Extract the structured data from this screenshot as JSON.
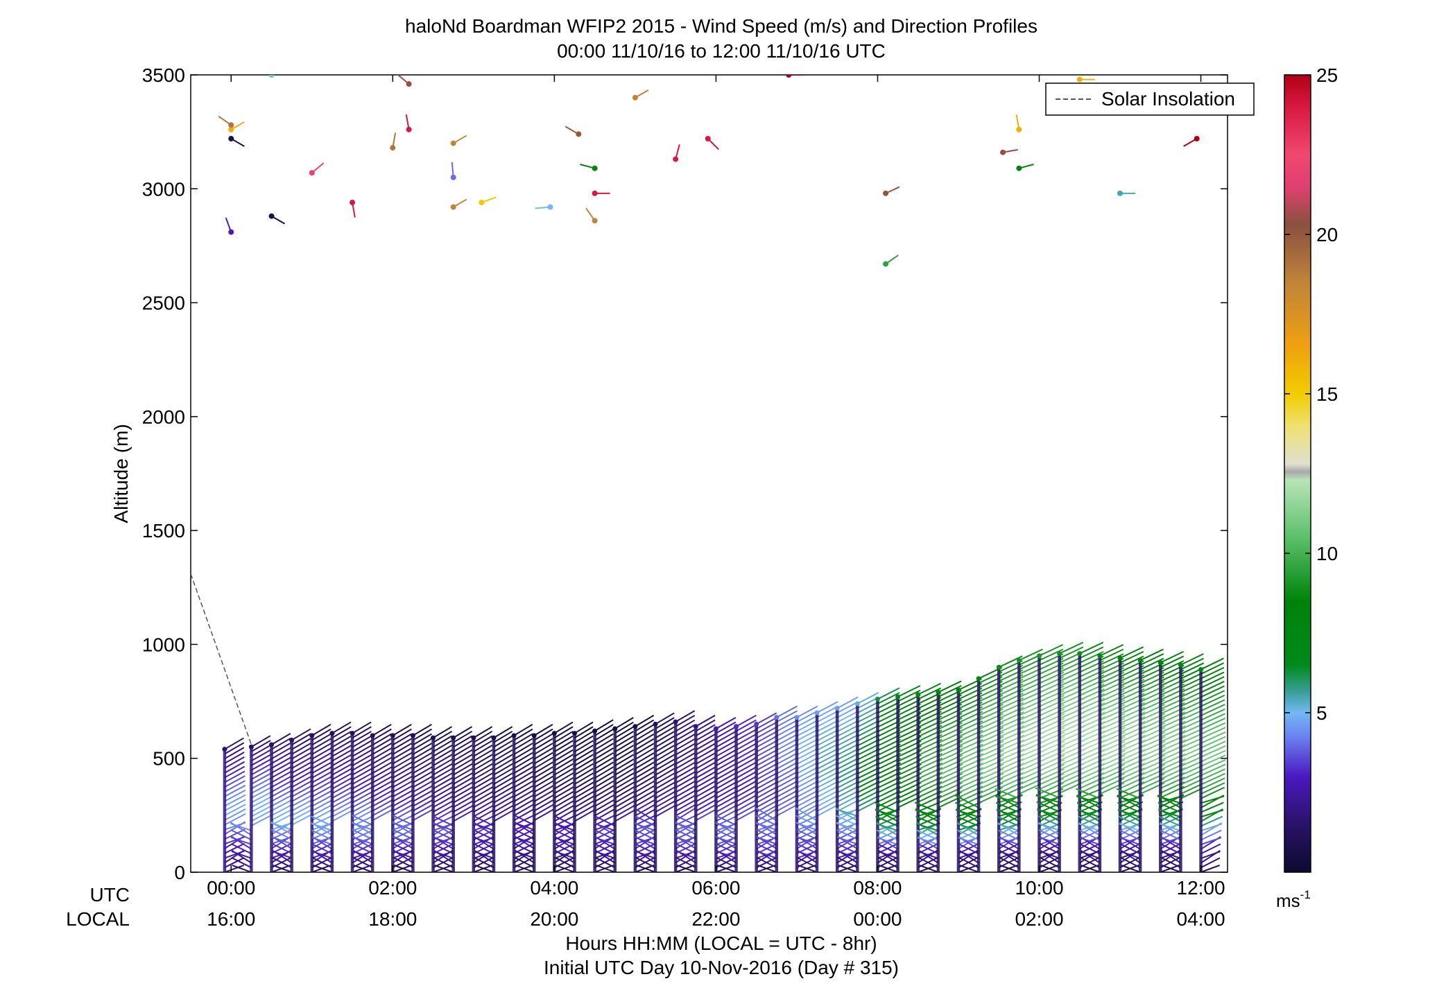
{
  "chart_data": {
    "type": "scatter",
    "subtype": "wind-barb-profile",
    "title": "haloNd Boardman WFIP2 2015 - Wind Speed (m/s) and Direction Profiles",
    "subtitle": "00:00 11/10/16 to 12:00 11/10/16  UTC",
    "ylabel": "Altitude (m)",
    "xlabel": "Hours HH:MM  (LOCAL = UTC - 8hr)",
    "xlabel2": "Initial UTC Day 10-Nov-2016 (Day # 315)",
    "ylim": [
      0,
      3500
    ],
    "xlim_hours": [
      -0.5,
      12.33
    ],
    "yticks": [
      0,
      500,
      1000,
      1500,
      2000,
      2500,
      3000,
      3500
    ],
    "row_labels": {
      "utc": "UTC",
      "local": "LOCAL"
    },
    "xticks": [
      {
        "hour": 0,
        "utc": "00:00",
        "local": "16:00"
      },
      {
        "hour": 2,
        "utc": "02:00",
        "local": "18:00"
      },
      {
        "hour": 4,
        "utc": "04:00",
        "local": "20:00"
      },
      {
        "hour": 6,
        "utc": "06:00",
        "local": "22:00"
      },
      {
        "hour": 8,
        "utc": "08:00",
        "local": "00:00"
      },
      {
        "hour": 10,
        "utc": "10:00",
        "local": "02:00"
      },
      {
        "hour": 12,
        "utc": "12:00",
        "local": "04:00"
      }
    ],
    "legend": {
      "label": "Solar Insolation",
      "position": "top-right",
      "style": "dashed"
    },
    "solar_insolation": {
      "x": [
        -0.5,
        0.25
      ],
      "y": [
        1310,
        560
      ]
    },
    "colorbar": {
      "min": 0,
      "max": 25,
      "ticks": [
        5,
        10,
        15,
        20,
        25
      ],
      "unit_label": "ms",
      "unit_exponent": "-1",
      "stops": [
        {
          "v": 0,
          "c": "#0b0b30"
        },
        {
          "v": 1.5,
          "c": "#2a1268"
        },
        {
          "v": 3,
          "c": "#4a18c0"
        },
        {
          "v": 4.2,
          "c": "#6a7ef0"
        },
        {
          "v": 5,
          "c": "#74b8f4"
        },
        {
          "v": 5.6,
          "c": "#3fa0a0"
        },
        {
          "v": 6.5,
          "c": "#008a1a"
        },
        {
          "v": 8.5,
          "c": "#00820a"
        },
        {
          "v": 10.5,
          "c": "#5cc06c"
        },
        {
          "v": 12.3,
          "c": "#b8e4b8"
        },
        {
          "v": 12.55,
          "c": "#a8a8a8"
        },
        {
          "v": 12.8,
          "c": "#e0e0d0"
        },
        {
          "v": 14,
          "c": "#f0e070"
        },
        {
          "v": 15,
          "c": "#f2cc00"
        },
        {
          "v": 16.5,
          "c": "#f0a010"
        },
        {
          "v": 18.5,
          "c": "#c0843a"
        },
        {
          "v": 20.3,
          "c": "#8a5040"
        },
        {
          "v": 21.5,
          "c": "#e04070"
        },
        {
          "v": 22.5,
          "c": "#f04870"
        },
        {
          "v": 24,
          "c": "#d81840"
        },
        {
          "v": 25,
          "c": "#b00018"
        }
      ]
    },
    "profile_columns_hours": [
      -0.08,
      0.25,
      0.5,
      0.75,
      1.0,
      1.25,
      1.5,
      1.75,
      2.0,
      2.25,
      2.5,
      2.75,
      3.0,
      3.25,
      3.5,
      3.75,
      4.0,
      4.25,
      4.5,
      4.75,
      5.0,
      5.25,
      5.5,
      5.75,
      6.0,
      6.25,
      6.5,
      6.75,
      7.0,
      7.25,
      7.5,
      7.75,
      8.0,
      8.25,
      8.5,
      8.75,
      9.0,
      9.25,
      9.5,
      9.75,
      10.0,
      10.25,
      10.5,
      10.75,
      11.0,
      11.25,
      11.5,
      11.75,
      12.0
    ],
    "profile_top_m": [
      540,
      550,
      560,
      580,
      600,
      610,
      610,
      600,
      600,
      600,
      590,
      590,
      590,
      590,
      600,
      600,
      610,
      610,
      620,
      630,
      640,
      650,
      660,
      640,
      630,
      640,
      650,
      680,
      680,
      700,
      720,
      740,
      760,
      770,
      780,
      790,
      800,
      850,
      900,
      930,
      950,
      960,
      960,
      950,
      940,
      930,
      920,
      910,
      890
    ],
    "profile_speed_ms": [
      [
        2.0,
        2.5,
        3.0,
        3.6,
        4.4,
        4.8,
        4.6,
        4.0,
        3.4,
        2.8,
        2.2,
        1.6
      ],
      [
        1.8,
        2.6,
        3.2,
        3.8,
        4.6,
        5.0,
        4.8,
        4.2,
        3.6,
        3.0,
        2.4,
        1.6
      ],
      [
        1.6,
        2.8,
        3.4,
        4.2,
        5.0,
        4.8,
        4.0,
        3.4,
        3.0,
        2.6,
        2.0,
        1.4
      ],
      [
        1.5,
        2.8,
        3.6,
        4.4,
        5.0,
        4.6,
        3.8,
        3.2,
        2.8,
        2.4,
        1.8,
        1.4
      ],
      [
        1.5,
        2.9,
        3.6,
        4.6,
        4.8,
        4.2,
        3.6,
        3.2,
        2.8,
        2.4,
        1.8,
        1.3
      ],
      [
        1.4,
        2.9,
        3.7,
        4.6,
        4.6,
        4.0,
        3.4,
        3.0,
        2.6,
        2.2,
        1.8,
        1.2
      ],
      [
        1.4,
        2.8,
        3.7,
        4.5,
        4.4,
        3.8,
        3.2,
        2.8,
        2.4,
        2.0,
        1.6,
        1.2
      ],
      [
        1.4,
        2.8,
        3.6,
        4.3,
        4.0,
        3.4,
        3.0,
        2.6,
        2.2,
        1.9,
        1.5,
        1.1
      ],
      [
        1.3,
        2.8,
        3.6,
        4.2,
        3.8,
        3.2,
        2.8,
        2.4,
        2.0,
        1.8,
        1.4,
        1.1
      ],
      [
        1.3,
        2.7,
        3.4,
        4.0,
        3.6,
        3.0,
        2.6,
        2.2,
        1.9,
        1.6,
        1.3,
        1.0
      ],
      [
        1.3,
        2.6,
        3.3,
        3.8,
        3.4,
        2.8,
        2.4,
        2.0,
        1.8,
        1.5,
        1.2,
        1.0
      ],
      [
        1.2,
        2.5,
        3.2,
        3.6,
        3.2,
        2.6,
        2.2,
        1.9,
        1.6,
        1.4,
        1.2,
        0.9
      ],
      [
        1.2,
        2.4,
        3.0,
        3.4,
        3.0,
        2.4,
        2.0,
        1.8,
        1.5,
        1.3,
        1.1,
        0.9
      ],
      [
        1.1,
        2.3,
        2.9,
        3.2,
        2.8,
        2.2,
        1.9,
        1.6,
        1.4,
        1.2,
        1.0,
        0.8
      ],
      [
        1.1,
        2.2,
        2.8,
        3.0,
        2.6,
        2.0,
        1.8,
        1.5,
        1.3,
        1.1,
        1.0,
        0.8
      ],
      [
        1.0,
        2.2,
        2.8,
        3.0,
        2.5,
        2.0,
        1.7,
        1.4,
        1.2,
        1.0,
        0.9,
        0.7
      ],
      [
        1.0,
        2.2,
        2.8,
        3.0,
        2.4,
        1.8,
        1.5,
        1.2,
        1.0,
        0.9,
        0.8,
        0.7
      ],
      [
        1.0,
        2.3,
        2.9,
        3.0,
        2.4,
        1.8,
        1.4,
        1.1,
        0.9,
        0.8,
        0.7,
        0.6
      ],
      [
        1.0,
        2.4,
        3.0,
        3.2,
        2.4,
        1.7,
        1.3,
        1.0,
        0.9,
        0.8,
        0.7,
        0.6
      ],
      [
        1.0,
        2.6,
        3.2,
        3.4,
        2.6,
        1.8,
        1.4,
        1.1,
        0.9,
        0.8,
        0.7,
        0.6
      ],
      [
        1.1,
        2.8,
        3.3,
        3.6,
        2.8,
        2.0,
        1.6,
        1.3,
        1.1,
        1.0,
        0.9,
        0.8
      ],
      [
        1.2,
        2.9,
        3.4,
        3.8,
        3.0,
        2.4,
        2.0,
        1.7,
        1.5,
        1.4,
        1.3,
        1.2
      ],
      [
        1.2,
        3.0,
        3.5,
        3.8,
        3.2,
        2.6,
        2.3,
        2.1,
        2.0,
        1.9,
        1.8,
        1.7
      ],
      [
        1.3,
        3.0,
        3.6,
        3.9,
        3.4,
        2.8,
        2.6,
        2.5,
        2.4,
        2.3,
        2.2,
        2.1
      ],
      [
        1.3,
        3.1,
        3.6,
        4.0,
        3.6,
        3.0,
        2.8,
        2.8,
        2.8,
        2.8,
        2.8,
        2.7
      ],
      [
        1.4,
        3.1,
        3.6,
        4.0,
        3.6,
        3.2,
        3.0,
        3.0,
        3.1,
        3.2,
        3.2,
        3.2
      ],
      [
        1.4,
        3.2,
        3.6,
        4.0,
        3.8,
        3.4,
        3.4,
        3.5,
        3.6,
        3.7,
        3.6,
        3.4
      ],
      [
        1.4,
        3.2,
        3.6,
        4.0,
        4.0,
        3.8,
        3.8,
        4.0,
        4.2,
        4.3,
        4.2,
        4.0
      ],
      [
        1.5,
        3.2,
        3.6,
        4.2,
        4.4,
        4.4,
        4.6,
        4.8,
        4.9,
        5.0,
        4.8,
        4.4
      ],
      [
        1.5,
        3.2,
        3.6,
        4.4,
        4.8,
        5.0,
        5.2,
        5.4,
        5.4,
        5.2,
        5.0,
        4.6
      ],
      [
        1.4,
        3.0,
        3.6,
        4.6,
        5.2,
        5.6,
        5.8,
        5.8,
        5.6,
        5.4,
        5.0,
        4.6
      ],
      [
        1.4,
        3.0,
        4.0,
        5.0,
        5.8,
        6.5,
        6.8,
        6.8,
        6.5,
        6.0,
        5.6,
        5.2
      ],
      [
        1.2,
        2.6,
        4.4,
        6.2,
        7.2,
        7.8,
        8.2,
        8.0,
        7.6,
        7.2,
        6.8,
        6.2
      ],
      [
        1.2,
        2.6,
        4.8,
        6.8,
        8.0,
        8.6,
        9.0,
        8.8,
        8.4,
        8.0,
        7.6,
        7.0
      ],
      [
        1.2,
        2.6,
        5.0,
        7.2,
        8.6,
        9.4,
        9.8,
        9.6,
        9.2,
        8.8,
        8.2,
        7.6
      ],
      [
        1.2,
        2.8,
        5.2,
        7.4,
        9.0,
        10.0,
        10.4,
        10.2,
        9.8,
        9.2,
        8.6,
        8.0
      ],
      [
        1.2,
        2.8,
        5.2,
        7.6,
        9.4,
        10.4,
        10.8,
        10.6,
        10.2,
        9.6,
        9.0,
        8.4
      ],
      [
        1.2,
        2.8,
        5.2,
        7.6,
        9.6,
        10.8,
        11.2,
        11.0,
        10.6,
        10.0,
        9.4,
        8.6
      ],
      [
        1.2,
        2.8,
        5.2,
        7.6,
        9.8,
        11.0,
        11.6,
        11.4,
        10.8,
        10.2,
        9.6,
        8.8
      ],
      [
        1.2,
        2.6,
        5.0,
        7.6,
        10.0,
        11.2,
        11.8,
        11.6,
        11.0,
        10.4,
        9.8,
        9.0
      ],
      [
        1.2,
        2.6,
        5.0,
        7.6,
        10.0,
        11.4,
        12.0,
        11.8,
        11.2,
        10.6,
        9.8,
        9.0
      ],
      [
        1.2,
        2.6,
        5.0,
        7.6,
        10.0,
        11.4,
        12.0,
        11.8,
        11.2,
        10.6,
        9.8,
        9.0
      ],
      [
        1.2,
        2.6,
        4.8,
        7.4,
        10.0,
        11.4,
        12.0,
        11.8,
        11.2,
        10.4,
        9.6,
        8.8
      ],
      [
        1.2,
        2.6,
        4.8,
        7.4,
        10.0,
        11.2,
        11.8,
        11.6,
        11.0,
        10.2,
        9.4,
        8.6
      ],
      [
        1.2,
        2.6,
        4.8,
        7.4,
        9.8,
        11.0,
        11.6,
        11.4,
        10.8,
        10.0,
        9.2,
        8.4
      ],
      [
        1.2,
        2.6,
        4.6,
        7.2,
        9.6,
        10.8,
        11.4,
        11.2,
        10.6,
        9.8,
        9.0,
        8.2
      ],
      [
        1.2,
        2.6,
        4.6,
        7.2,
        9.4,
        10.6,
        11.2,
        11.0,
        10.4,
        9.6,
        8.8,
        8.0
      ],
      [
        1.2,
        2.6,
        4.6,
        7.0,
        9.2,
        10.4,
        11.0,
        10.8,
        10.2,
        9.4,
        8.6,
        7.8
      ],
      [
        1.2,
        2.6,
        4.6,
        7.0,
        9.0,
        10.2,
        10.8,
        10.6,
        10.0,
        9.2,
        8.4,
        7.6
      ]
    ],
    "upper_points": [
      {
        "x": 0.0,
        "y": 2810,
        "speed": 3.0,
        "angle": -110
      },
      {
        "x": 0.0,
        "y": 3220,
        "speed": 0.8,
        "angle": 30
      },
      {
        "x": 0.0,
        "y": 3260,
        "speed": 16.0,
        "angle": -30
      },
      {
        "x": 0.0,
        "y": 3280,
        "speed": 19.0,
        "angle": -145
      },
      {
        "x": 0.5,
        "y": 2880,
        "speed": 0.8,
        "angle": 30
      },
      {
        "x": 0.5,
        "y": 3500,
        "speed": 11.0,
        "angle": -150
      },
      {
        "x": 1.0,
        "y": 3070,
        "speed": 22.0,
        "angle": -40
      },
      {
        "x": 1.5,
        "y": 2940,
        "speed": 24.0,
        "angle": 80
      },
      {
        "x": 2.0,
        "y": 3180,
        "speed": 19.0,
        "angle": -80
      },
      {
        "x": 2.2,
        "y": 3260,
        "speed": 24.0,
        "angle": -100
      },
      {
        "x": 2.2,
        "y": 3460,
        "speed": 20.5,
        "angle": -140
      },
      {
        "x": 2.75,
        "y": 2920,
        "speed": 18.5,
        "angle": -30
      },
      {
        "x": 2.75,
        "y": 3050,
        "speed": 4.0,
        "angle": -95
      },
      {
        "x": 2.75,
        "y": 3200,
        "speed": 18.5,
        "angle": -30
      },
      {
        "x": 3.1,
        "y": 2940,
        "speed": 15.0,
        "angle": -20
      },
      {
        "x": 3.95,
        "y": 2920,
        "speed": 5.0,
        "angle": 175
      },
      {
        "x": 4.3,
        "y": 3240,
        "speed": 20.0,
        "angle": -150
      },
      {
        "x": 4.5,
        "y": 2860,
        "speed": 18.5,
        "angle": -125
      },
      {
        "x": 4.5,
        "y": 2980,
        "speed": 24.0,
        "angle": 0
      },
      {
        "x": 4.5,
        "y": 3090,
        "speed": 8.0,
        "angle": -165
      },
      {
        "x": 5.0,
        "y": 3400,
        "speed": 18.5,
        "angle": -30
      },
      {
        "x": 5.5,
        "y": 3130,
        "speed": 24.0,
        "angle": -75
      },
      {
        "x": 5.9,
        "y": 3220,
        "speed": 24.0,
        "angle": 45
      },
      {
        "x": 6.9,
        "y": 3500,
        "speed": 25.0,
        "angle": 0
      },
      {
        "x": 8.1,
        "y": 2670,
        "speed": 9.5,
        "angle": -35
      },
      {
        "x": 8.1,
        "y": 2980,
        "speed": 20.0,
        "angle": -25
      },
      {
        "x": 9.55,
        "y": 3160,
        "speed": 20.5,
        "angle": -10
      },
      {
        "x": 9.75,
        "y": 3090,
        "speed": 8.0,
        "angle": -15
      },
      {
        "x": 9.75,
        "y": 3260,
        "speed": 16.0,
        "angle": -100
      },
      {
        "x": 10.5,
        "y": 3480,
        "speed": 16.0,
        "angle": 0
      },
      {
        "x": 11.0,
        "y": 2980,
        "speed": 5.5,
        "angle": 0
      },
      {
        "x": 11.95,
        "y": 3220,
        "speed": 25.0,
        "angle": 150
      }
    ]
  }
}
